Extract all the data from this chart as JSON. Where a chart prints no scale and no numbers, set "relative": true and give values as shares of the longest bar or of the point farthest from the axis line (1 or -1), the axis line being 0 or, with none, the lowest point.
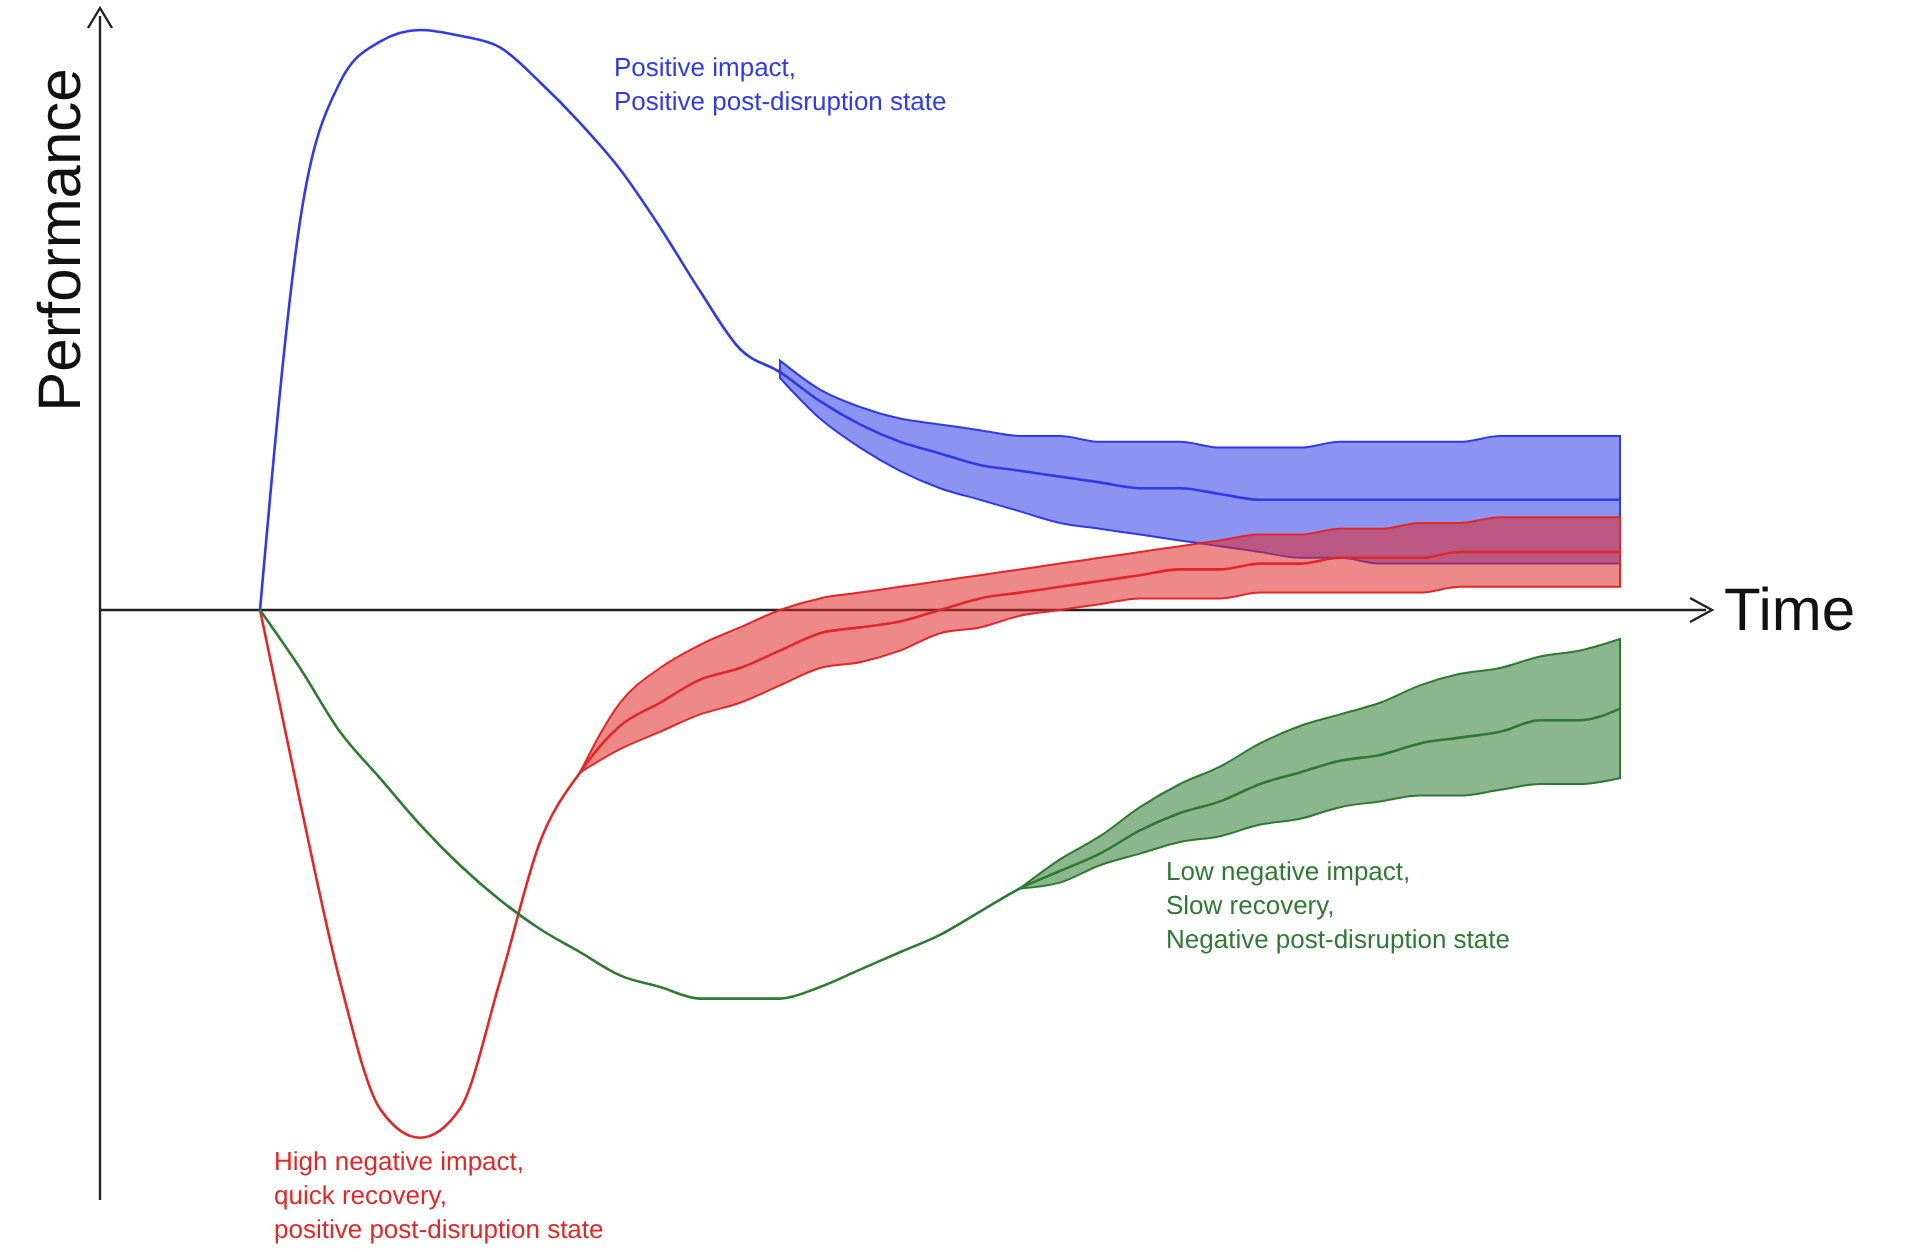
{
  "chart_data": {
    "type": "line",
    "relative": true,
    "xlabel": "Time",
    "ylabel": "Performance",
    "categories": [
      null,
      null,
      null,
      null,
      null,
      null,
      null,
      null,
      null,
      null,
      null,
      null,
      null,
      null,
      null,
      null,
      null,
      null,
      null,
      null,
      null,
      null,
      null,
      null,
      null,
      null,
      null,
      null,
      null,
      null,
      null,
      null,
      null,
      null,
      null,
      null,
      null,
      null,
      null
    ],
    "series": [
      {
        "color": "#2f3be6",
        "values": [
          null,
          null,
          null,
          null,
          0,
          0.67,
          0.91,
          0.98,
          1,
          0.99,
          0.97,
          0.91,
          0.84,
          0.76,
          0.66,
          0.55,
          0.45,
          0.41,
          0.36,
          0.32,
          0.29,
          0.27,
          0.25,
          0.24,
          0.23,
          0.22,
          0.21,
          0.21,
          0.2,
          0.19,
          0.19,
          0.19,
          0.19,
          0.19,
          0.19,
          0.19,
          0.19,
          0.19,
          0.19
        ],
        "upper": [
          null,
          null,
          null,
          null,
          null,
          null,
          null,
          null,
          null,
          null,
          null,
          null,
          null,
          null,
          null,
          null,
          null,
          0.43,
          0.38,
          0.35,
          0.33,
          0.32,
          0.31,
          0.3,
          0.3,
          0.29,
          0.29,
          0.29,
          0.28,
          0.28,
          0.28,
          0.29,
          0.29,
          0.29,
          0.29,
          0.3,
          0.3,
          0.3,
          0.3
        ],
        "lower": [
          null,
          null,
          null,
          null,
          null,
          null,
          null,
          null,
          null,
          null,
          null,
          null,
          null,
          null,
          null,
          null,
          null,
          0.4,
          0.33,
          0.28,
          0.24,
          0.21,
          0.19,
          0.17,
          0.15,
          0.14,
          0.13,
          0.12,
          0.11,
          0.1,
          0.09,
          0.09,
          0.08,
          0.08,
          0.08,
          0.08,
          0.08,
          0.08,
          0.08
        ]
      },
      {
        "color": "#e02828",
        "values": [
          null,
          null,
          null,
          null,
          0,
          -0.33,
          -0.64,
          -0.86,
          -0.91,
          -0.86,
          -0.64,
          -0.4,
          -0.28,
          -0.2,
          -0.16,
          -0.12,
          -0.1,
          -0.07,
          -0.04,
          -0.03,
          -0.02,
          0,
          0.02,
          0.03,
          0.04,
          0.05,
          0.06,
          0.07,
          0.07,
          0.08,
          0.08,
          0.09,
          0.09,
          0.09,
          0.1,
          0.1,
          0.1,
          0.1,
          0.1
        ],
        "upper": [
          null,
          null,
          null,
          null,
          null,
          null,
          null,
          null,
          null,
          null,
          null,
          null,
          -0.28,
          -0.16,
          -0.1,
          -0.06,
          -0.03,
          0,
          0.02,
          0.03,
          0.04,
          0.05,
          0.06,
          0.07,
          0.08,
          0.09,
          0.1,
          0.11,
          0.12,
          0.13,
          0.13,
          0.14,
          0.14,
          0.15,
          0.15,
          0.16,
          0.16,
          0.16,
          0.16
        ],
        "lower": [
          null,
          null,
          null,
          null,
          null,
          null,
          null,
          null,
          null,
          null,
          null,
          null,
          -0.28,
          -0.24,
          -0.21,
          -0.18,
          -0.16,
          -0.13,
          -0.1,
          -0.09,
          -0.07,
          -0.04,
          -0.03,
          -0.01,
          0,
          0.01,
          0.02,
          0.02,
          0.02,
          0.03,
          0.03,
          0.03,
          0.03,
          0.03,
          0.04,
          0.04,
          0.04,
          0.04,
          0.04
        ]
      },
      {
        "color": "#2e7a32",
        "values": [
          null,
          null,
          null,
          null,
          0,
          -0.1,
          -0.21,
          -0.29,
          -0.37,
          -0.44,
          -0.5,
          -0.55,
          -0.59,
          -0.63,
          -0.65,
          -0.67,
          -0.67,
          -0.67,
          -0.65,
          -0.62,
          -0.59,
          -0.56,
          -0.52,
          -0.48,
          -0.45,
          -0.42,
          -0.38,
          -0.35,
          -0.33,
          -0.3,
          -0.28,
          -0.26,
          -0.25,
          -0.23,
          -0.22,
          -0.21,
          -0.19,
          -0.19,
          -0.17
        ],
        "upper": [
          null,
          null,
          null,
          null,
          null,
          null,
          null,
          null,
          null,
          null,
          null,
          null,
          null,
          null,
          null,
          null,
          null,
          null,
          null,
          null,
          null,
          null,
          null,
          -0.48,
          -0.43,
          -0.39,
          -0.34,
          -0.3,
          -0.27,
          -0.23,
          -0.2,
          -0.18,
          -0.16,
          -0.13,
          -0.11,
          -0.1,
          -0.08,
          -0.07,
          -0.05
        ],
        "lower": [
          null,
          null,
          null,
          null,
          null,
          null,
          null,
          null,
          null,
          null,
          null,
          null,
          null,
          null,
          null,
          null,
          null,
          null,
          null,
          null,
          null,
          null,
          null,
          -0.48,
          -0.47,
          -0.44,
          -0.42,
          -0.4,
          -0.39,
          -0.37,
          -0.36,
          -0.34,
          -0.33,
          -0.32,
          -0.32,
          -0.31,
          -0.3,
          -0.3,
          -0.29
        ]
      }
    ],
    "annotations": [
      "Positive impact,\nPositive post-disruption state",
      "High negative impact,\nquick recovery,\npositive post-disruption state",
      "Low negative impact,\nSlow recovery,\nNegative post-disruption state"
    ]
  }
}
